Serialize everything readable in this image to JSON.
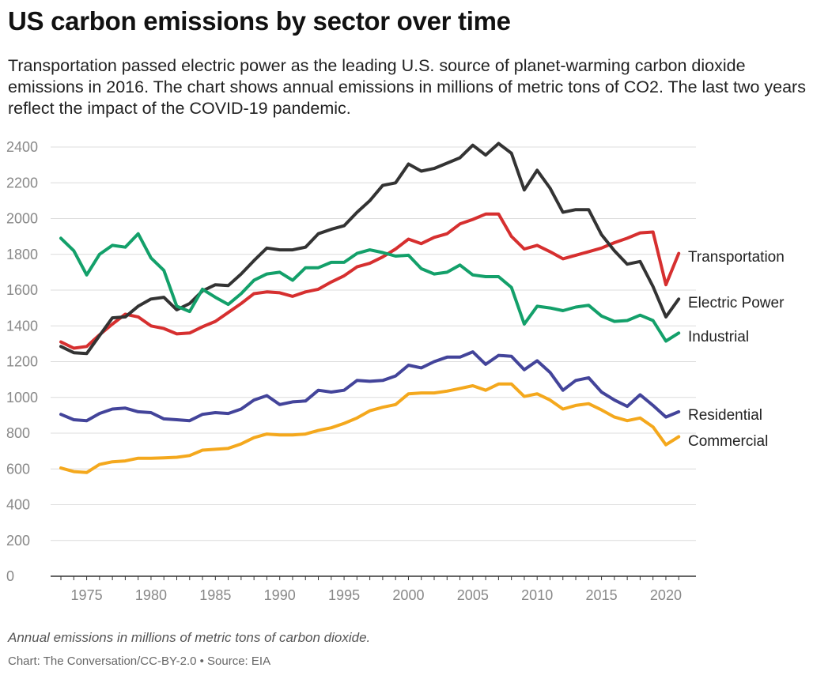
{
  "chart_data": {
    "type": "line",
    "title": "US carbon emissions by sector over time",
    "subtitle": "Transportation passed electric power as the leading U.S. source of planet-warming carbon dioxide emissions in 2016. The chart shows annual emissions in millions of metric tons of CO2. The last two years reflect the impact of the COVID-19 pandemic.",
    "xlabel": "",
    "ylabel": "",
    "xlim": [
      1972.2,
      2021.6
    ],
    "ylim": [
      0,
      2400
    ],
    "yticks": [
      0,
      200,
      400,
      600,
      800,
      1000,
      1200,
      1400,
      1600,
      1800,
      2000,
      2200,
      2400
    ],
    "xticks": [
      1975,
      1980,
      1985,
      1990,
      1995,
      2000,
      2005,
      2010,
      2015,
      2020
    ],
    "grid": true,
    "legend": "direct labels at right end of each line",
    "x": [
      1973,
      1974,
      1975,
      1976,
      1977,
      1978,
      1979,
      1980,
      1981,
      1982,
      1983,
      1984,
      1985,
      1986,
      1987,
      1988,
      1989,
      1990,
      1991,
      1992,
      1993,
      1994,
      1995,
      1996,
      1997,
      1998,
      1999,
      2000,
      2001,
      2002,
      2003,
      2004,
      2005,
      2006,
      2007,
      2008,
      2009,
      2010,
      2011,
      2012,
      2013,
      2014,
      2015,
      2016,
      2017,
      2018,
      2019,
      2020,
      2021
    ],
    "series": [
      {
        "name": "Transportation",
        "color": "#d62f2f",
        "values": [
          1310,
          1275,
          1285,
          1350,
          1410,
          1465,
          1450,
          1400,
          1385,
          1355,
          1360,
          1395,
          1425,
          1475,
          1525,
          1580,
          1590,
          1585,
          1565,
          1590,
          1605,
          1645,
          1680,
          1730,
          1750,
          1785,
          1830,
          1885,
          1860,
          1895,
          1915,
          1970,
          1995,
          2025,
          2025,
          1900,
          1830,
          1850,
          1815,
          1775,
          1795,
          1815,
          1835,
          1865,
          1890,
          1920,
          1925,
          1630,
          1805
        ]
      },
      {
        "name": "Electric Power",
        "color": "#333333",
        "values": [
          1285,
          1250,
          1245,
          1345,
          1445,
          1450,
          1510,
          1550,
          1560,
          1490,
          1525,
          1595,
          1630,
          1625,
          1690,
          1765,
          1835,
          1825,
          1825,
          1840,
          1915,
          1940,
          1960,
          2035,
          2100,
          2185,
          2200,
          2305,
          2265,
          2280,
          2310,
          2340,
          2410,
          2355,
          2420,
          2365,
          2160,
          2270,
          2170,
          2035,
          2050,
          2050,
          1910,
          1820,
          1745,
          1760,
          1620,
          1450,
          1550
        ]
      },
      {
        "name": "Industrial",
        "color": "#13a06a",
        "values": [
          1890,
          1820,
          1685,
          1800,
          1850,
          1840,
          1915,
          1780,
          1710,
          1510,
          1480,
          1605,
          1560,
          1520,
          1580,
          1655,
          1690,
          1700,
          1655,
          1725,
          1725,
          1755,
          1755,
          1805,
          1825,
          1810,
          1790,
          1795,
          1720,
          1690,
          1700,
          1740,
          1685,
          1675,
          1675,
          1615,
          1410,
          1510,
          1500,
          1485,
          1505,
          1515,
          1455,
          1425,
          1430,
          1460,
          1430,
          1315,
          1360
        ]
      },
      {
        "name": "Residential",
        "color": "#43449a",
        "values": [
          905,
          875,
          870,
          910,
          935,
          940,
          920,
          915,
          880,
          875,
          870,
          905,
          915,
          910,
          935,
          985,
          1010,
          960,
          975,
          980,
          1040,
          1030,
          1040,
          1095,
          1090,
          1095,
          1120,
          1180,
          1165,
          1200,
          1225,
          1225,
          1255,
          1185,
          1235,
          1230,
          1155,
          1205,
          1140,
          1040,
          1095,
          1110,
          1030,
          985,
          950,
          1015,
          955,
          890,
          920
        ]
      },
      {
        "name": "Commercial",
        "color": "#f4a81d",
        "values": [
          605,
          585,
          580,
          625,
          640,
          645,
          660,
          660,
          662,
          665,
          675,
          705,
          710,
          715,
          740,
          775,
          795,
          790,
          790,
          795,
          815,
          830,
          855,
          885,
          925,
          945,
          960,
          1020,
          1025,
          1025,
          1035,
          1050,
          1065,
          1040,
          1075,
          1075,
          1005,
          1020,
          985,
          935,
          955,
          965,
          930,
          890,
          870,
          885,
          835,
          735,
          780
        ]
      }
    ]
  },
  "footer": {
    "note": "Annual emissions in millions of metric tons of carbon dioxide.",
    "source": "Chart: The Conversation/CC-BY-2.0 • Source: EIA"
  }
}
